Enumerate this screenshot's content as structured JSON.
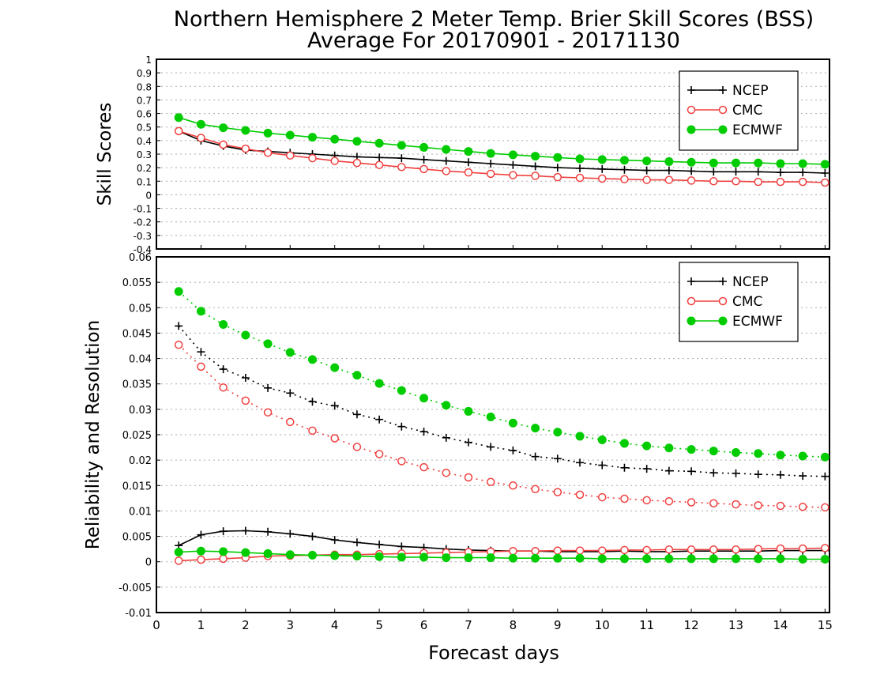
{
  "chart_data": {
    "type": "line",
    "title_line1": "Northern Hemisphere 2 Meter Temp. Brier Skill Scores (BSS)",
    "title_line2": "Average For 20170901 - 20171130",
    "xlabel": "Forecast days",
    "x_ticks": [
      "0",
      "1",
      "2",
      "3",
      "4",
      "5",
      "6",
      "7",
      "8",
      "9",
      "10",
      "11",
      "12",
      "13",
      "14",
      "15"
    ],
    "xlim": [
      0,
      15.1
    ],
    "x": [
      0.5,
      1,
      1.5,
      2,
      2.5,
      3,
      3.5,
      4,
      4.5,
      5,
      5.5,
      6,
      6.5,
      7,
      7.5,
      8,
      8.5,
      9,
      9.5,
      10,
      10.5,
      11,
      11.5,
      12,
      12.5,
      13,
      13.5,
      14,
      14.5,
      15
    ],
    "colors": {
      "NCEP": "#000000",
      "CMC": "#f04040",
      "ECMWF": "#00cc00"
    },
    "legend_labels": [
      "NCEP",
      "CMC",
      "ECMWF"
    ],
    "legend_position": "top-right",
    "grid": true,
    "panels": [
      {
        "ylabel": "Skill Scores",
        "ylim": [
          -0.4,
          1
        ],
        "y_ticks": [
          "1",
          "0.9",
          "0.8",
          "0.7",
          "0.6",
          "0.5",
          "0.4",
          "0.3",
          "0.2",
          "0.1",
          "0",
          "-0.1",
          "-0.2",
          "-0.3",
          "-0.4"
        ],
        "series": [
          {
            "name": "NCEP",
            "style": "solid",
            "marker": "plus",
            "values": [
              0.47,
              0.4,
              0.36,
              0.33,
              0.32,
              0.31,
              0.3,
              0.29,
              0.28,
              0.275,
              0.27,
              0.26,
              0.25,
              0.24,
              0.23,
              0.22,
              0.21,
              0.2,
              0.195,
              0.19,
              0.185,
              0.18,
              0.18,
              0.175,
              0.17,
              0.17,
              0.17,
              0.165,
              0.165,
              0.16
            ]
          },
          {
            "name": "CMC",
            "style": "solid",
            "marker": "open-circle",
            "values": [
              0.47,
              0.42,
              0.37,
              0.34,
              0.31,
              0.29,
              0.27,
              0.25,
              0.235,
              0.22,
              0.205,
              0.19,
              0.175,
              0.165,
              0.155,
              0.145,
              0.14,
              0.13,
              0.125,
              0.12,
              0.115,
              0.11,
              0.11,
              0.105,
              0.1,
              0.1,
              0.095,
              0.095,
              0.095,
              0.09
            ]
          },
          {
            "name": "ECMWF",
            "style": "solid",
            "marker": "filled-circle",
            "values": [
              0.57,
              0.52,
              0.495,
              0.475,
              0.455,
              0.44,
              0.425,
              0.41,
              0.395,
              0.38,
              0.365,
              0.35,
              0.335,
              0.32,
              0.305,
              0.295,
              0.285,
              0.275,
              0.265,
              0.26,
              0.255,
              0.25,
              0.245,
              0.24,
              0.235,
              0.235,
              0.235,
              0.23,
              0.23,
              0.225
            ]
          }
        ]
      },
      {
        "ylabel": "Reliability and Resolution",
        "ylim": [
          -0.01,
          0.06
        ],
        "y_ticks": [
          "0.06",
          "0.055",
          "0.05",
          "0.045",
          "0.04",
          "0.035",
          "0.03",
          "0.025",
          "0.02",
          "0.015",
          "0.01",
          "0.005",
          "0",
          "-0.005",
          "-0.01"
        ],
        "series": [
          {
            "name": "NCEP",
            "style": "dotted",
            "marker": "plus",
            "values": [
              0.0464,
              0.0413,
              0.0379,
              0.0362,
              0.0342,
              0.0332,
              0.0315,
              0.0307,
              0.029,
              0.028,
              0.0266,
              0.0256,
              0.0244,
              0.0235,
              0.0226,
              0.0219,
              0.0207,
              0.0203,
              0.0195,
              0.019,
              0.0185,
              0.0183,
              0.0179,
              0.0178,
              0.0175,
              0.0174,
              0.0172,
              0.0171,
              0.0169,
              0.0168
            ]
          },
          {
            "name": "CMC",
            "style": "dotted",
            "marker": "open-circle",
            "values": [
              0.0427,
              0.0384,
              0.0343,
              0.0317,
              0.0294,
              0.0275,
              0.0258,
              0.0243,
              0.0226,
              0.0212,
              0.0198,
              0.0186,
              0.0175,
              0.0166,
              0.0157,
              0.015,
              0.0143,
              0.0137,
              0.0132,
              0.0127,
              0.0124,
              0.0121,
              0.0119,
              0.0117,
              0.0115,
              0.0113,
              0.0111,
              0.011,
              0.0108,
              0.0107
            ]
          },
          {
            "name": "ECMWF",
            "style": "dotted",
            "marker": "filled-circle",
            "values": [
              0.0532,
              0.0493,
              0.0467,
              0.0446,
              0.0429,
              0.0412,
              0.0398,
              0.0382,
              0.0367,
              0.0351,
              0.0337,
              0.0322,
              0.0308,
              0.0296,
              0.0285,
              0.0273,
              0.0263,
              0.0255,
              0.0247,
              0.024,
              0.0233,
              0.0228,
              0.0224,
              0.0221,
              0.0218,
              0.0215,
              0.0213,
              0.021,
              0.0208,
              0.0206
            ]
          },
          {
            "name": "NCEP",
            "style": "solid",
            "marker": "plus",
            "values": [
              0.0032,
              0.0053,
              0.006,
              0.0061,
              0.0059,
              0.0055,
              0.005,
              0.0043,
              0.0038,
              0.0034,
              0.003,
              0.0028,
              0.0025,
              0.0023,
              0.0022,
              0.0021,
              0.0021,
              0.002,
              0.002,
              0.002,
              0.0021,
              0.002,
              0.002,
              0.0021,
              0.0021,
              0.0021,
              0.0021,
              0.0022,
              0.0022,
              0.0022
            ]
          },
          {
            "name": "CMC",
            "style": "solid",
            "marker": "open-circle",
            "values": [
              0.0002,
              0.0004,
              0.0006,
              0.0008,
              0.0011,
              0.0012,
              0.0013,
              0.0014,
              0.0014,
              0.0015,
              0.0016,
              0.0017,
              0.0018,
              0.0019,
              0.002,
              0.0021,
              0.0021,
              0.0022,
              0.0022,
              0.0022,
              0.0023,
              0.0023,
              0.0024,
              0.0024,
              0.0024,
              0.0024,
              0.0025,
              0.0026,
              0.0026,
              0.0027
            ]
          },
          {
            "name": "ECMWF",
            "style": "solid",
            "marker": "filled-circle",
            "values": [
              0.0019,
              0.0021,
              0.002,
              0.0018,
              0.0016,
              0.0014,
              0.0013,
              0.0012,
              0.0011,
              0.001,
              0.0009,
              0.0009,
              0.0008,
              0.0008,
              0.0008,
              0.0007,
              0.0007,
              0.0007,
              0.0007,
              0.0006,
              0.0006,
              0.0006,
              0.0006,
              0.0006,
              0.0006,
              0.0006,
              0.0006,
              0.0006,
              0.0005,
              0.0005
            ]
          }
        ]
      }
    ]
  }
}
